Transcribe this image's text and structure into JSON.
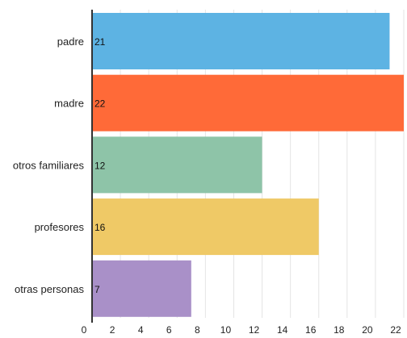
{
  "chart_data": {
    "type": "bar",
    "orientation": "horizontal",
    "categories": [
      "padre",
      "madre",
      "otros familiares",
      "profesores",
      "otras personas"
    ],
    "values": [
      21,
      22,
      12,
      16,
      7
    ],
    "data_labels": [
      "21",
      "22",
      "12",
      "16",
      "7"
    ],
    "colors": [
      "#5db3e3",
      "#ff6a38",
      "#8ec4a8",
      "#efc966",
      "#a990c8"
    ],
    "xlim": [
      0,
      22
    ],
    "xticks": [
      0,
      2,
      4,
      6,
      8,
      10,
      12,
      14,
      16,
      18,
      20,
      22
    ],
    "grid": true,
    "title": "",
    "xlabel": "",
    "ylabel": ""
  }
}
